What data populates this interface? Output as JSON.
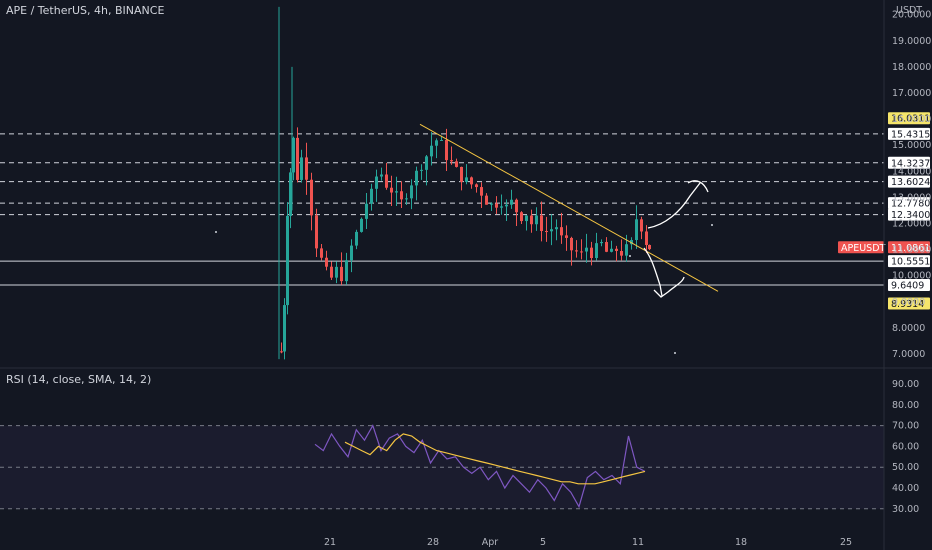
{
  "header": {
    "title": "APE / TetherUS, 4h, BINANCE"
  },
  "rsi_header": {
    "title": "RSI (14, close, SMA, 14, 2)"
  },
  "colors": {
    "up": "#26a69a",
    "down": "#ef5350",
    "bg": "#131722",
    "rsi": "#7e57c2",
    "rsi_ma": "#f5c542",
    "trend": "#f5c542"
  },
  "chart_data": [
    {
      "type": "candlestick",
      "title": "APE / TetherUS, 4h, BINANCE",
      "ylabel": "USDT",
      "ylim": [
        6.5,
        20.3
      ],
      "y_ticks": [
        "20.0000",
        "19.0000",
        "18.0000",
        "17.0000",
        "16.0000",
        "15.0000",
        "14.0000",
        "13.0000",
        "12.0000",
        "11.0000",
        "10.0000",
        "9.0000",
        "8.0000",
        "7.0000"
      ],
      "x_ticks": [
        "21",
        "28",
        "Apr",
        "5",
        "11",
        "18",
        "25"
      ],
      "dashed_levels": [
        15.4315,
        14.3237,
        13.6024,
        12.778,
        12.34
      ],
      "solid_levels": [
        10.5551,
        9.6409
      ],
      "price_labels": [
        {
          "text": "16.0311",
          "value": 16.0311,
          "style": "yellow"
        },
        {
          "text": "15.4315",
          "value": 15.4315,
          "style": "white"
        },
        {
          "text": "14.3237",
          "value": 14.3237,
          "style": "white"
        },
        {
          "text": "13.6024",
          "value": 13.6024,
          "style": "white"
        },
        {
          "text": "12.7780",
          "value": 12.778,
          "style": "white"
        },
        {
          "text": "12.3400",
          "value": 12.34,
          "style": "white"
        },
        {
          "text": "APEUSDT",
          "value": 11.0861,
          "style": "red-name"
        },
        {
          "text": "11.0861",
          "value": 11.0861,
          "style": "red"
        },
        {
          "text": "10.5551",
          "value": 10.5551,
          "style": "white"
        },
        {
          "text": "9.6409",
          "value": 9.6409,
          "style": "white"
        },
        {
          "text": "8.9314",
          "value": 8.9314,
          "style": "yellow"
        }
      ],
      "trendline": {
        "start": {
          "x": "Mar 27",
          "y": 15.8
        },
        "end": {
          "x": "Apr 14",
          "y": 9.4
        }
      },
      "symbol": "APEUSDT",
      "last_price": 11.0861
    },
    {
      "type": "line",
      "title": "RSI (14, close, SMA, 14, 2)",
      "ylim": [
        25,
        95
      ],
      "y_ticks": [
        "90.00",
        "80.00",
        "70.00",
        "60.00",
        "50.00",
        "40.00",
        "30.00"
      ],
      "bands": [
        70,
        50,
        30
      ],
      "series": [
        {
          "values": [
            62,
            60,
            58,
            56,
            60,
            58,
            63,
            66,
            65,
            62,
            60,
            58,
            57,
            56,
            55,
            54,
            53,
            52,
            51,
            50,
            49,
            48,
            47,
            46,
            45,
            44,
            43,
            43,
            42,
            42,
            42,
            43,
            44,
            45,
            46,
            47,
            48
          ]
        },
        {
          "values": [
            61,
            58,
            66,
            60,
            55,
            68,
            63,
            70,
            58,
            64,
            66,
            60,
            57,
            63,
            52,
            58,
            54,
            55,
            50,
            47,
            50,
            44,
            48,
            40,
            46,
            42,
            38,
            44,
            40,
            34,
            42,
            38,
            31,
            45,
            48,
            44,
            46,
            42,
            65,
            50,
            48
          ]
        }
      ]
    }
  ]
}
